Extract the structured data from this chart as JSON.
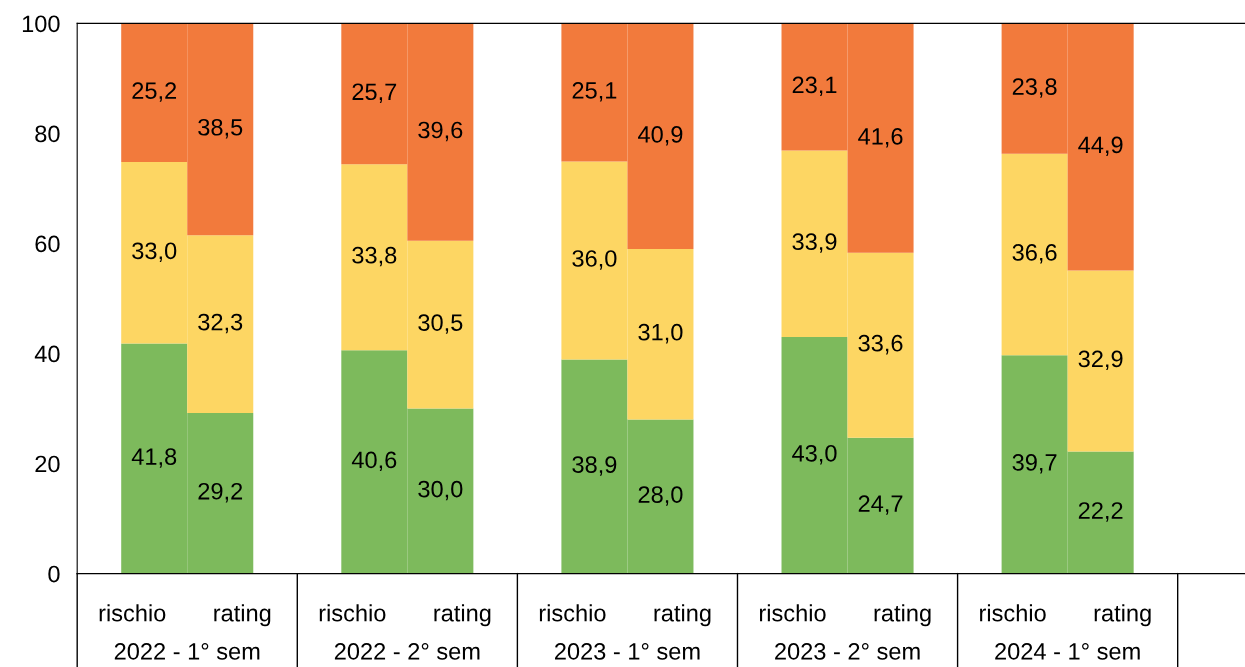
{
  "chart_data": {
    "type": "bar",
    "stacked": true,
    "categories": [
      "rischio",
      "rating",
      "rischio",
      "rating",
      "rischio",
      "rating",
      "rischio",
      "rating",
      "rischio",
      "rating"
    ],
    "series": [
      {
        "color": "#7dba5c",
        "values": [
          41.8,
          29.2,
          40.6,
          30.0,
          38.9,
          28.0,
          43.0,
          24.7,
          39.7,
          22.2
        ],
        "value_labels": [
          "41,8",
          "29,2",
          "40,6",
          "30,0",
          "38,9",
          "28,0",
          "43,0",
          "24,7",
          "39,7",
          "22,2"
        ]
      },
      {
        "color": "#fdd663",
        "values": [
          33.0,
          32.3,
          33.8,
          30.5,
          36.0,
          31.0,
          33.9,
          33.6,
          36.6,
          32.9
        ],
        "value_labels": [
          "33,0",
          "32,3",
          "33,8",
          "30,5",
          "36,0",
          "31,0",
          "33,9",
          "33,6",
          "36,6",
          "32,9"
        ]
      },
      {
        "color": "#f27a3c",
        "values": [
          25.2,
          38.5,
          25.7,
          39.6,
          25.1,
          40.9,
          23.1,
          41.6,
          23.8,
          44.9
        ],
        "value_labels": [
          "25,2",
          "38,5",
          "25,7",
          "39,6",
          "25,1",
          "40,9",
          "23,1",
          "41,6",
          "23,8",
          "44,9"
        ]
      }
    ],
    "annotations": [
      "2022 - 1° sem",
      "2022 - 2° sem",
      "2023 - 1° sem",
      "2023 - 2° sem",
      "2024 - 1° sem"
    ],
    "ylim": [
      0,
      100
    ],
    "yticks": [
      0,
      20,
      40,
      60,
      80,
      100
    ],
    "grid": false,
    "legend": false
  }
}
